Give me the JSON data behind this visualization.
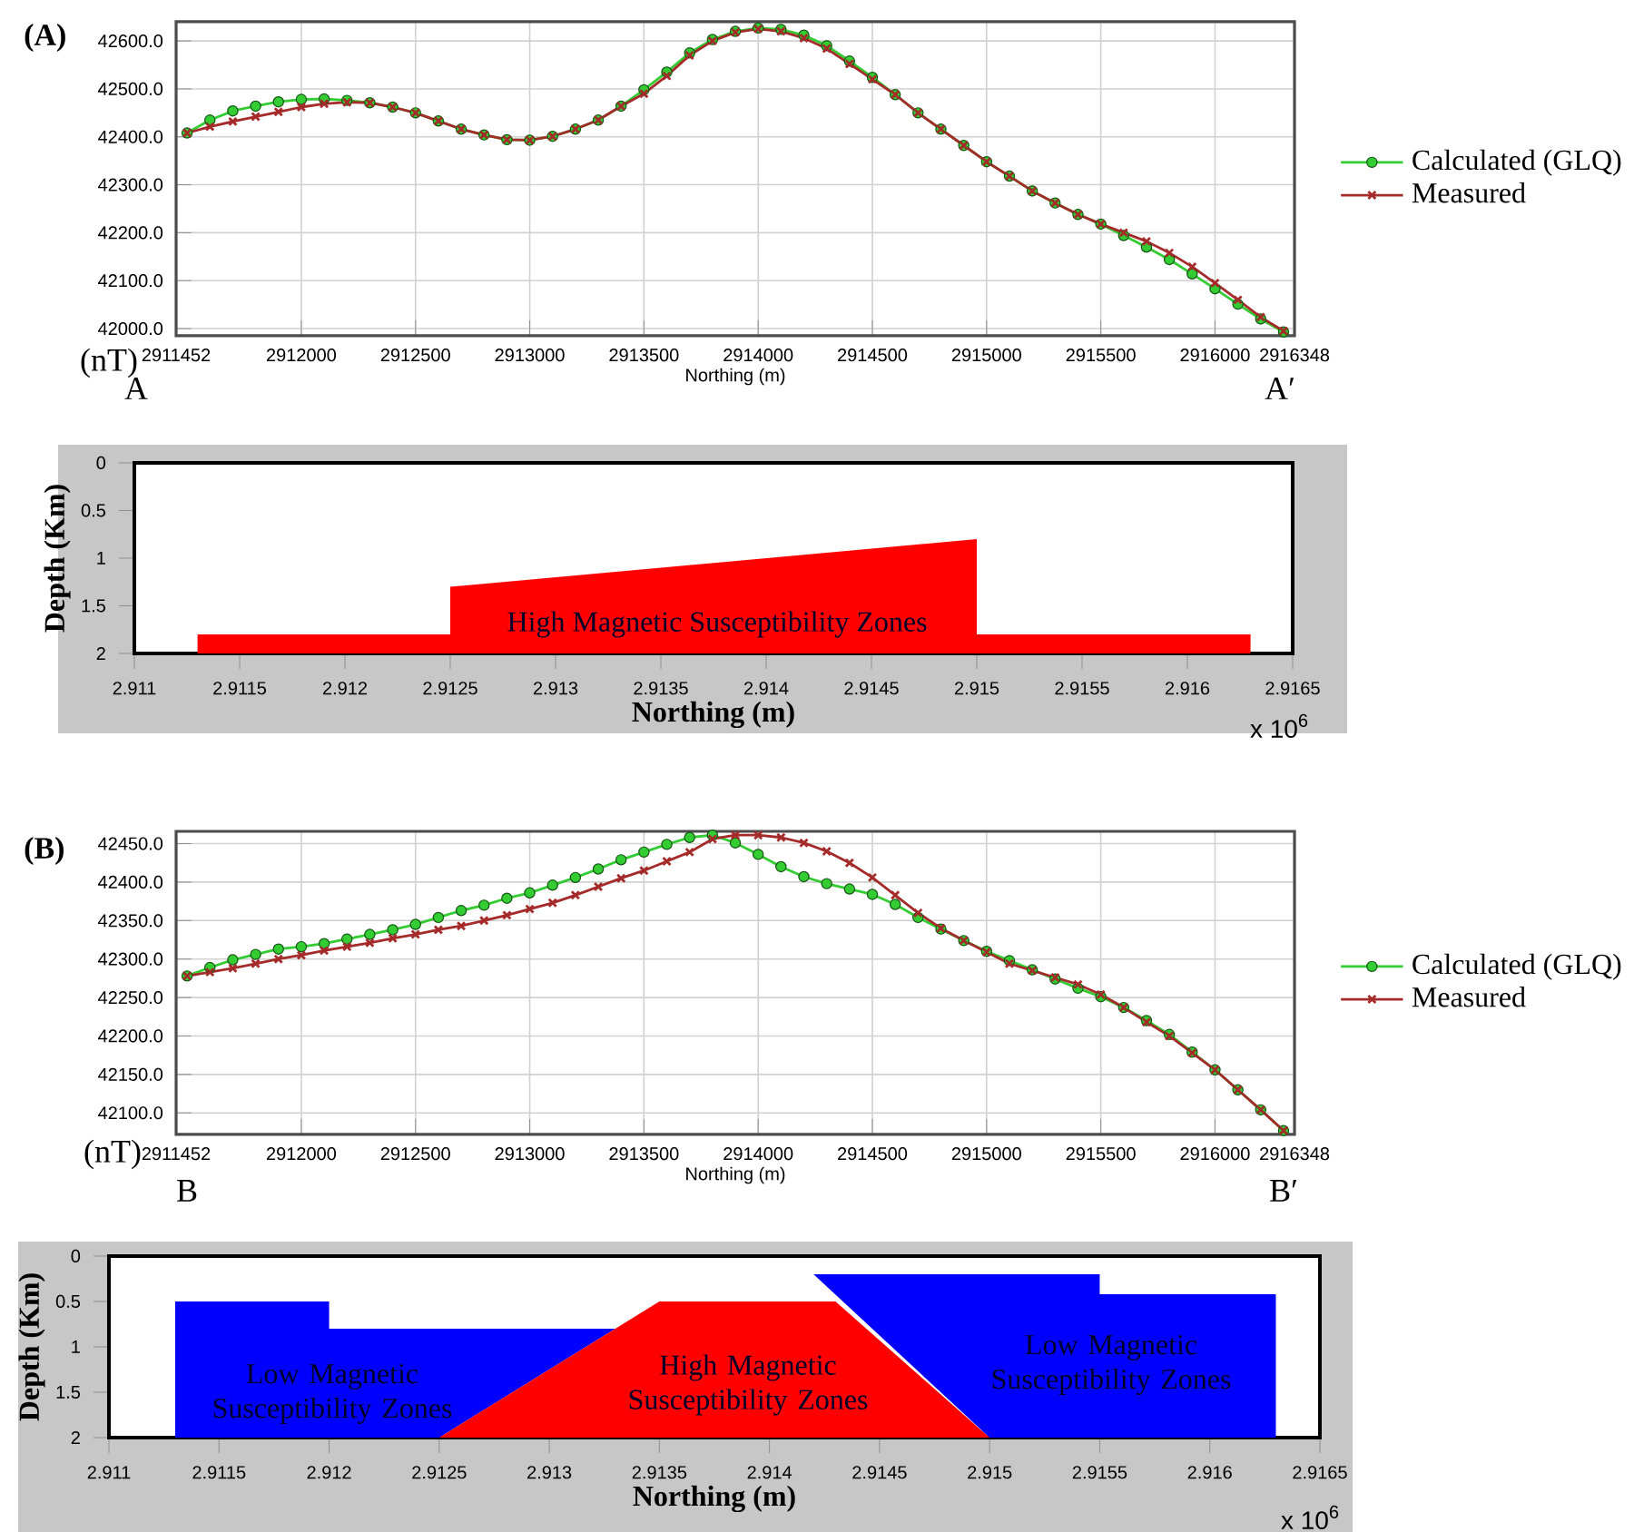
{
  "chart_data": [
    {
      "type": "line",
      "title": "(A)",
      "xlabel": "Northing (m)",
      "annotations": [
        "(nT)",
        "A",
        "A′"
      ],
      "x": [
        2911500,
        2911600,
        2911700,
        2911800,
        2911900,
        2912000,
        2912100,
        2912200,
        2912300,
        2912400,
        2912500,
        2912600,
        2912700,
        2912800,
        2912900,
        2913000,
        2913100,
        2913200,
        2913300,
        2913400,
        2913500,
        2913600,
        2913700,
        2913800,
        2913900,
        2914000,
        2914100,
        2914200,
        2914300,
        2914400,
        2914500,
        2914600,
        2914700,
        2914800,
        2914900,
        2915000,
        2915100,
        2915200,
        2915300,
        2915400,
        2915500,
        2915600,
        2915700,
        2915800,
        2915900,
        2916000,
        2916100,
        2916200,
        2916300
      ],
      "series": [
        {
          "name": "Calculated (GLQ)",
          "color": "#33cc33",
          "marker": "circle",
          "values": [
            42408,
            42435,
            42454,
            42464,
            42473,
            42478,
            42479,
            42476,
            42471,
            42462,
            42450,
            42433,
            42416,
            42404,
            42394,
            42393,
            42401,
            42416,
            42435,
            42464,
            42498,
            42535,
            42575,
            42603,
            42620,
            42627,
            42624,
            42612,
            42590,
            42558,
            42524,
            42488,
            42450,
            42416,
            42382,
            42348,
            42318,
            42287,
            42262,
            42238,
            42218,
            42194,
            42170,
            42144,
            42114,
            42083,
            42051,
            42020,
            41993
          ]
        },
        {
          "name": "Measured",
          "color": "#a52a2a",
          "marker": "cross",
          "values": [
            42408,
            42421,
            42432,
            42442,
            42452,
            42462,
            42469,
            42472,
            42471,
            42462,
            42450,
            42433,
            42416,
            42404,
            42394,
            42393,
            42401,
            42416,
            42435,
            42464,
            42490,
            42527,
            42570,
            42600,
            42618,
            42625,
            42620,
            42606,
            42584,
            42552,
            42520,
            42488,
            42450,
            42416,
            42382,
            42348,
            42318,
            42287,
            42262,
            42238,
            42218,
            42200,
            42182,
            42158,
            42129,
            42095,
            42060,
            42024,
            41995
          ]
        }
      ],
      "xlim": [
        2911452,
        2916348
      ],
      "xticks": [
        2911452,
        2912000,
        2912500,
        2913000,
        2913500,
        2914000,
        2914500,
        2915000,
        2915500,
        2916000,
        2916348
      ],
      "ylim": [
        41985,
        42640
      ],
      "yticks": [
        {
          "value": 42000,
          "label": "42000.0"
        },
        {
          "value": 42100,
          "label": "42100.0"
        },
        {
          "value": 42200,
          "label": "42200.0"
        },
        {
          "value": 42300,
          "label": "42300.0"
        },
        {
          "value": 42400,
          "label": "42400.0"
        },
        {
          "value": 42500,
          "label": "42500.0"
        },
        {
          "value": 42600,
          "label": "42600.0"
        }
      ],
      "grid": true,
      "legend": "right"
    },
    {
      "type": "area",
      "xlabel": "Northing (m)",
      "ylabel": "Depth (Km)",
      "annotations": [
        "High Magnetic Susceptibility Zones",
        "x 10$^{6}$"
      ],
      "series": [
        {
          "color": "#ff0000",
          "x": [
            2.9113,
            2.9113,
            2.9125,
            2.9125,
            2.915,
            2.915,
            2.9163,
            2.9163
          ],
          "values": [
            2,
            1.8,
            1.8,
            1.3,
            0.8,
            1.8,
            1.8,
            2
          ]
        }
      ],
      "xlim": [
        2.911,
        2.9165
      ],
      "xticks": [
        2.911,
        2.9115,
        2.912,
        2.9125,
        2.913,
        2.9135,
        2.914,
        2.9145,
        2.915,
        2.9155,
        2.916,
        2.9165
      ],
      "ylim": [
        2,
        0
      ],
      "yticks": [
        0,
        0.5,
        1,
        1.5,
        2
      ]
    },
    {
      "type": "line",
      "title": "(B)",
      "xlabel": "Northing (m)",
      "annotations": [
        "(nT)",
        "B",
        "B′"
      ],
      "x": [
        2911500,
        2911600,
        2911700,
        2911800,
        2911900,
        2912000,
        2912100,
        2912200,
        2912300,
        2912400,
        2912500,
        2912600,
        2912700,
        2912800,
        2912900,
        2913000,
        2913100,
        2913200,
        2913300,
        2913400,
        2913500,
        2913600,
        2913700,
        2913800,
        2913900,
        2914000,
        2914100,
        2914200,
        2914300,
        2914400,
        2914500,
        2914600,
        2914700,
        2914800,
        2914900,
        2915000,
        2915100,
        2915200,
        2915300,
        2915400,
        2915500,
        2915600,
        2915700,
        2915800,
        2915900,
        2916000,
        2916100,
        2916200,
        2916300
      ],
      "series": [
        {
          "name": "Calculated (GLQ)",
          "color": "#33cc33",
          "marker": "circle",
          "values": [
            42278,
            42289,
            42299,
            42306,
            42313,
            42316,
            42320,
            42326,
            42332,
            42338,
            42345,
            42354,
            42363,
            42370,
            42379,
            42386,
            42396,
            42406,
            42417,
            42429,
            42439,
            42449,
            42458,
            42461,
            42451,
            42436,
            42420,
            42407,
            42398,
            42391,
            42384,
            42371,
            42354,
            42339,
            42324,
            42310,
            42298,
            42286,
            42274,
            42262,
            42251,
            42237,
            42220,
            42202,
            42179,
            42156,
            42130,
            42104,
            42077
          ]
        },
        {
          "name": "Measured",
          "color": "#a52a2a",
          "marker": "cross",
          "values": [
            42278,
            42283,
            42288,
            42294,
            42300,
            42305,
            42311,
            42316,
            42321,
            42327,
            42332,
            42338,
            42343,
            42350,
            42357,
            42365,
            42373,
            42383,
            42394,
            42405,
            42415,
            42427,
            42439,
            42456,
            42461,
            42461,
            42458,
            42451,
            42440,
            42425,
            42406,
            42383,
            42360,
            42340,
            42324,
            42309,
            42294,
            42285,
            42276,
            42267,
            42254,
            42237,
            42218,
            42200,
            42178,
            42156,
            42130,
            42104,
            42077
          ]
        }
      ],
      "xlim": [
        2911452,
        2916348
      ],
      "xticks": [
        2911452,
        2912000,
        2912500,
        2913000,
        2913500,
        2914000,
        2914500,
        2915000,
        2915500,
        2916000,
        2916348
      ],
      "ylim": [
        42072,
        42466
      ],
      "yticks": [
        {
          "value": 42100,
          "label": "42100.0"
        },
        {
          "value": 42150,
          "label": "42150.0"
        },
        {
          "value": 42200,
          "label": "42200.0"
        },
        {
          "value": 42250,
          "label": "42250.0"
        },
        {
          "value": 42300,
          "label": "42300.0"
        },
        {
          "value": 42350,
          "label": "42350.0"
        },
        {
          "value": 42400,
          "label": "42400.0"
        },
        {
          "value": 42450,
          "label": "42450.0"
        }
      ],
      "grid": true,
      "legend": "right"
    },
    {
      "type": "area",
      "xlabel": "Northing (m)",
      "ylabel": "Depth (Km)",
      "annotations": [
        "Low Magnetic Susceptibility Zones",
        "High Magnetic Susceptibility Zones",
        "Low Magnetic Susceptibility Zones",
        "x 10$^{6}$"
      ],
      "series": [
        {
          "color": "#0000ff",
          "x": [
            2.9113,
            2.9113,
            2.912,
            2.912,
            2.9133,
            2.9125
          ],
          "values": [
            2,
            0.5,
            0.5,
            0.8,
            0.8,
            2
          ]
        },
        {
          "color": "#ff0000",
          "x": [
            2.9125,
            2.9135,
            2.9143,
            2.915
          ],
          "values": [
            2,
            0.5,
            0.5,
            2
          ]
        },
        {
          "color": "#0000ff",
          "x": [
            2.915,
            2.9142,
            2.9155,
            2.9155,
            2.9163,
            2.9163
          ],
          "values": [
            2,
            0.2,
            0.2,
            0.42,
            0.42,
            2
          ]
        }
      ],
      "xlim": [
        2.911,
        2.9165
      ],
      "xticks": [
        2.911,
        2.9115,
        2.912,
        2.9125,
        2.913,
        2.9135,
        2.914,
        2.9145,
        2.915,
        2.9155,
        2.916,
        2.9165
      ],
      "ylim": [
        2,
        0
      ],
      "yticks": [
        0,
        0.5,
        1,
        1.5,
        2
      ]
    }
  ]
}
